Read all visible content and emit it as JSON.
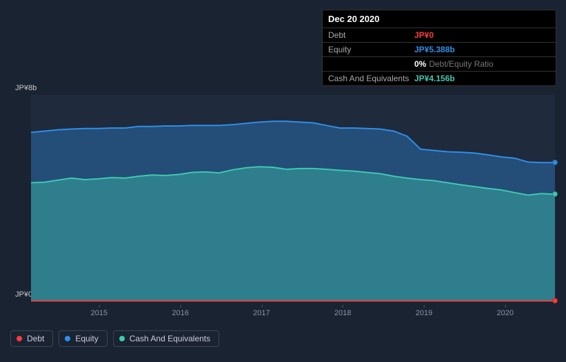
{
  "tooltip": {
    "date": "Dec 20 2020",
    "rows": [
      {
        "label": "Debt",
        "value": "JP¥0",
        "cls": "v-debt"
      },
      {
        "label": "Equity",
        "value": "JP¥5.388b",
        "cls": "v-equity"
      },
      {
        "label": "",
        "value": "0%",
        "cls": "v-ratio",
        "suffix": "Debt/Equity Ratio"
      },
      {
        "label": "Cash And Equivalents",
        "value": "JP¥4.156b",
        "cls": "v-cash"
      }
    ]
  },
  "chart": {
    "type": "area",
    "background": "#1a2332",
    "plot_background": "#1f2a3d",
    "grid_color": "#2a3548",
    "axis_text_color": "#8a94a6",
    "y_label_top": "JP¥8b",
    "y_label_bottom": "JP¥0",
    "ylim": [
      0,
      8
    ],
    "x_years": [
      "2015",
      "2016",
      "2017",
      "2018",
      "2019",
      "2020"
    ],
    "x_positions_pct": [
      13,
      28.5,
      44,
      59.5,
      75,
      90.5
    ],
    "series": {
      "equity": {
        "name": "Equity",
        "color": "#2e8fe8",
        "fill": "rgba(46,143,232,0.35)",
        "values": [
          6.55,
          6.6,
          6.65,
          6.68,
          6.7,
          6.7,
          6.72,
          6.72,
          6.78,
          6.78,
          6.8,
          6.8,
          6.82,
          6.82,
          6.82,
          6.85,
          6.9,
          6.95,
          6.98,
          6.98,
          6.95,
          6.92,
          6.82,
          6.72,
          6.72,
          6.7,
          6.68,
          6.6,
          6.4,
          5.9,
          5.85,
          5.8,
          5.78,
          5.75,
          5.68,
          5.6,
          5.55,
          5.4,
          5.38,
          5.38
        ]
      },
      "cash": {
        "name": "Cash And Equivalents",
        "color": "#3ec9b0",
        "fill": "rgba(62,201,176,0.40)",
        "values": [
          4.6,
          4.62,
          4.7,
          4.78,
          4.72,
          4.75,
          4.8,
          4.78,
          4.85,
          4.9,
          4.88,
          4.92,
          5.0,
          5.02,
          4.98,
          5.1,
          5.18,
          5.22,
          5.2,
          5.12,
          5.15,
          5.15,
          5.12,
          5.08,
          5.05,
          5.0,
          4.95,
          4.85,
          4.78,
          4.72,
          4.68,
          4.6,
          4.52,
          4.45,
          4.38,
          4.32,
          4.22,
          4.12,
          4.18,
          4.15
        ]
      },
      "debt": {
        "name": "Debt",
        "color": "#ff3b3b",
        "fill": "rgba(255,59,59,0.5)",
        "values": [
          0.02,
          0.02,
          0.02,
          0.02,
          0.02,
          0.02,
          0.02,
          0.02,
          0.02,
          0.02,
          0.02,
          0.02,
          0.02,
          0.02,
          0.02,
          0.02,
          0.02,
          0.02,
          0.02,
          0.02,
          0.02,
          0.02,
          0.02,
          0.02,
          0.02,
          0.02,
          0.02,
          0.02,
          0.02,
          0.02,
          0.02,
          0.02,
          0.02,
          0.02,
          0.02,
          0.02,
          0.02,
          0.02,
          0.02,
          0.02
        ]
      }
    },
    "legend": [
      {
        "key": "debt",
        "label": "Debt",
        "color": "#ff3b3b"
      },
      {
        "key": "equity",
        "label": "Equity",
        "color": "#2e8fe8"
      },
      {
        "key": "cash",
        "label": "Cash And Equivalents",
        "color": "#3ec9b0"
      }
    ],
    "endpoints": [
      {
        "series": "equity",
        "color": "#2e8fe8"
      },
      {
        "series": "cash",
        "color": "#3ec9b0"
      },
      {
        "series": "debt",
        "color": "#ff3b3b"
      }
    ]
  }
}
